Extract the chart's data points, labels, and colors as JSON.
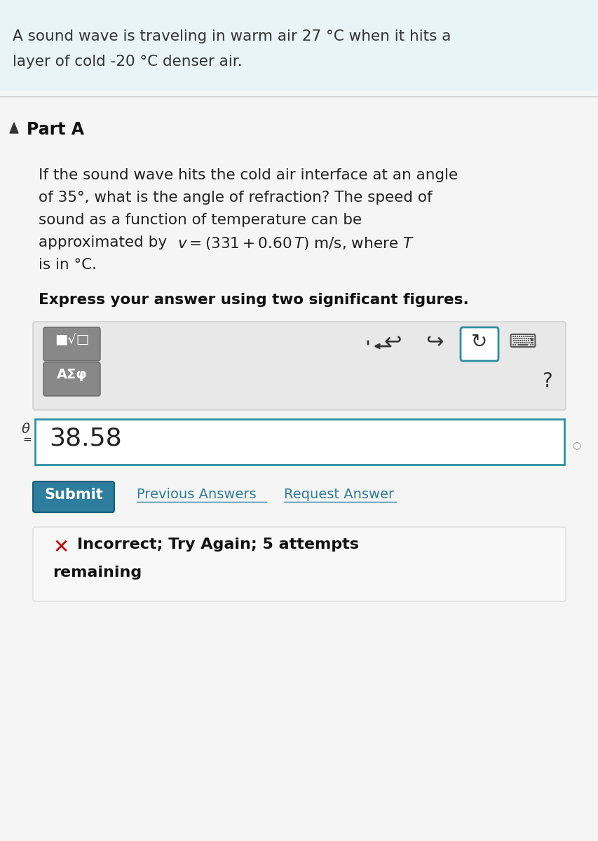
{
  "bg_color": "#f5f5f5",
  "header_bg": "#e8f4f8",
  "header_text_line1": "A sound wave is traveling in warm air 27 °C when it hits a",
  "header_text_line2": "layer of cold -20 °C denser air.",
  "part_a_label": "Part A",
  "question_line1": "If the sound wave hits the cold air interface at an angle",
  "question_line2": "of 35°, what is the angle of refraction? The speed of",
  "question_line3": "sound as a function of temperature can be",
  "question_line4": "approximated by v = (331 + 0.60 T) m/s, where T",
  "question_line5": "is in °C.",
  "express_text": "Express your answer using two significant figures.",
  "answer_value": "38.58",
  "submit_text": "Submit",
  "prev_answers_text": "Previous Answers",
  "request_answer_text": "Request Answer",
  "incorrect_bold": "Incorrect; Try Again; 5 attempts",
  "incorrect_line2": "remaining",
  "submit_bg": "#2e7d9e",
  "submit_text_color": "#ffffff",
  "link_color": "#2e7d9e",
  "incorrect_x_color": "#cc0000",
  "answer_border_color": "#2e8fa0",
  "toolbar_bg": "#e0e0e0",
  "toolbar_btn_bg": "#888888",
  "toolbar_btn_text_color": "#ffffff",
  "refresh_border_color": "#2e8fa0"
}
